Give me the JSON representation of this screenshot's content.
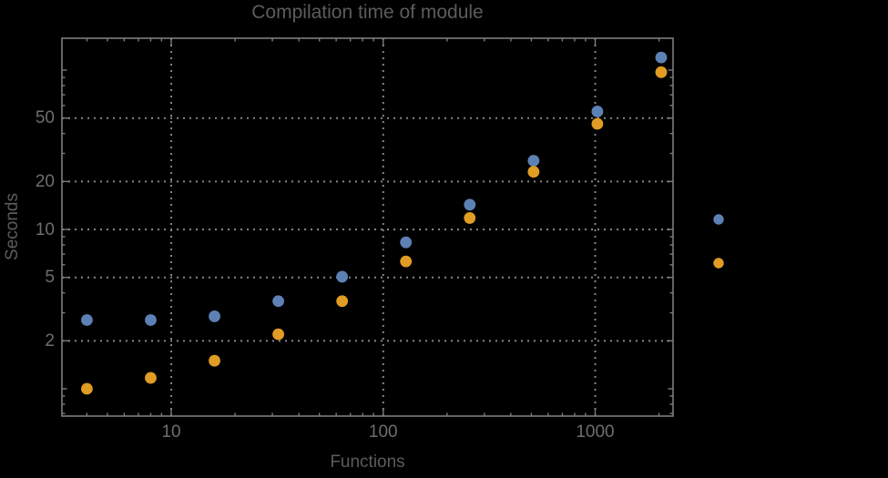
{
  "colors": {
    "background": "#000000",
    "frame": "#7d7d7d",
    "grid": "#858585",
    "tick_label": "#6e6e6e",
    "title_text": "#5c5c5c",
    "series1": "#5e81b5",
    "series2": "#e19c24"
  },
  "legend": {
    "note": "two color markers, no visible text labels",
    "markers": [
      {
        "name": "series-1-blue",
        "color": "#5e81b5"
      },
      {
        "name": "series-2-orange",
        "color": "#e19c24"
      }
    ]
  },
  "chart_data": {
    "type": "scatter",
    "title": "Compilation time of module",
    "xlabel": "Functions",
    "ylabel": "Seconds",
    "x_scale": "log",
    "y_scale": "log",
    "xlim": [
      3.05,
      2330
    ],
    "ylim": [
      0.674,
      158.5
    ],
    "grid": "dotted gridlines at labeled ticks only",
    "legend_position": "right of plot, markers only",
    "x": [
      4,
      8,
      16,
      32,
      64,
      128,
      256,
      512,
      1024,
      2048
    ],
    "series": [
      {
        "name": "series-1-blue",
        "color": "#5e81b5",
        "values": [
          2.7,
          2.7,
          2.85,
          3.55,
          5.05,
          8.3,
          14.3,
          27,
          55,
          120
        ]
      },
      {
        "name": "series-2-orange",
        "color": "#e19c24",
        "values": [
          1.0,
          1.17,
          1.5,
          2.2,
          3.55,
          6.3,
          11.8,
          23,
          46,
          97
        ]
      }
    ],
    "x_ticks": [
      {
        "value": 10,
        "label": "10"
      },
      {
        "value": 100,
        "label": "100"
      },
      {
        "value": 1000,
        "label": "1000"
      }
    ],
    "y_ticks": [
      {
        "value": 2,
        "label": "2"
      },
      {
        "value": 5,
        "label": "5"
      },
      {
        "value": 10,
        "label": "10"
      },
      {
        "value": 20,
        "label": "20"
      },
      {
        "value": 50,
        "label": "50"
      }
    ],
    "y_ticks_unlabeled_major": [
      1,
      100
    ]
  }
}
